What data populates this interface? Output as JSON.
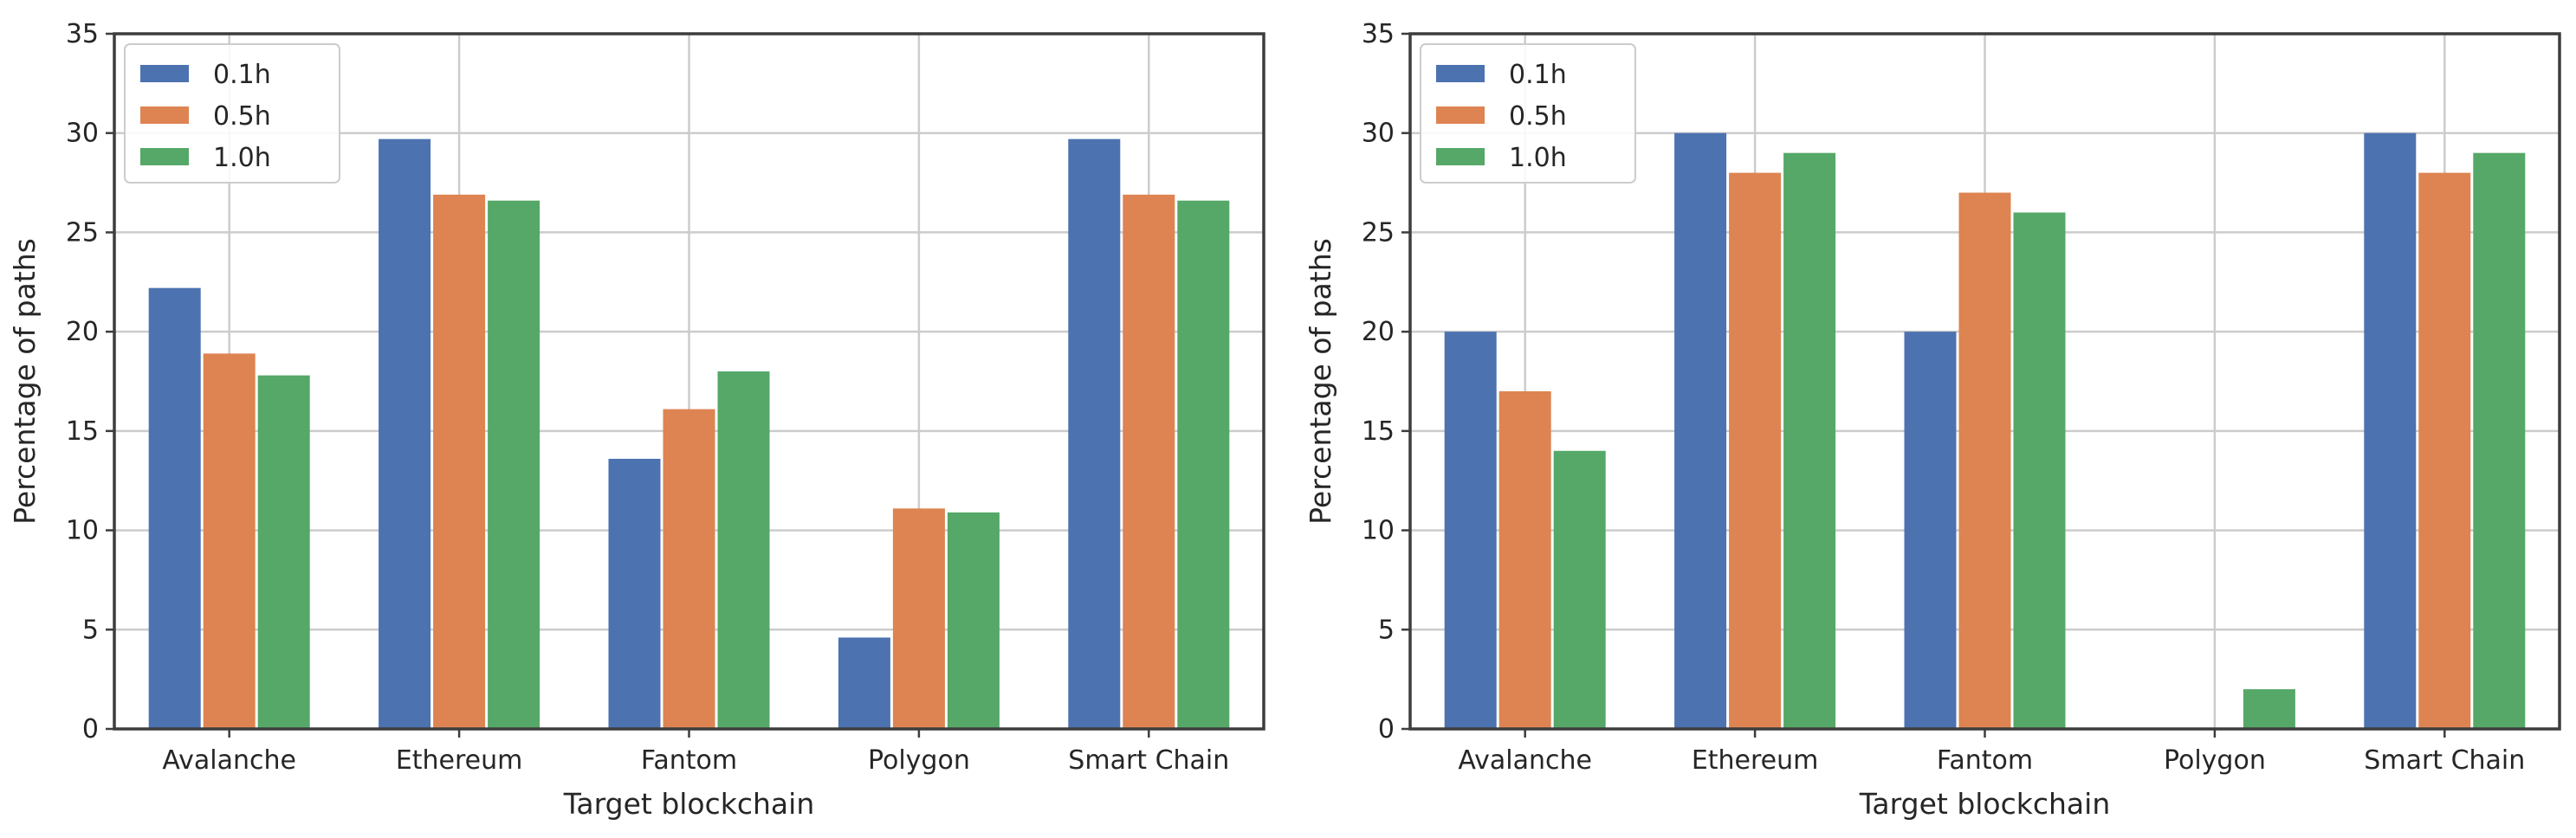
{
  "chart_data": [
    {
      "type": "bar",
      "categories": [
        "Avalanche",
        "Ethereum",
        "Fantom",
        "Polygon",
        "Smart Chain"
      ],
      "series": [
        {
          "name": "0.1h",
          "color": "#4c72b0",
          "values": [
            22.2,
            29.7,
            13.6,
            4.6,
            29.7
          ]
        },
        {
          "name": "0.5h",
          "color": "#dd8452",
          "values": [
            18.9,
            26.9,
            16.1,
            11.1,
            26.9
          ]
        },
        {
          "name": "1.0h",
          "color": "#55a868",
          "values": [
            17.8,
            26.6,
            18.0,
            10.9,
            26.6
          ]
        }
      ],
      "xlabel": "Target blockchain",
      "ylabel": "Percentage of paths",
      "ylim": [
        0,
        35
      ],
      "yticks": [
        "0",
        "5",
        "10",
        "15",
        "20",
        "25",
        "30",
        "35"
      ],
      "grid": true,
      "legend_position": "top-left"
    },
    {
      "type": "bar",
      "categories": [
        "Avalanche",
        "Ethereum",
        "Fantom",
        "Polygon",
        "Smart Chain"
      ],
      "series": [
        {
          "name": "0.1h",
          "color": "#4c72b0",
          "values": [
            20,
            30,
            20,
            0,
            30
          ]
        },
        {
          "name": "0.5h",
          "color": "#dd8452",
          "values": [
            17,
            28,
            27,
            0,
            28
          ]
        },
        {
          "name": "1.0h",
          "color": "#55a868",
          "values": [
            14,
            29,
            26,
            2,
            29
          ]
        }
      ],
      "xlabel": "Target blockchain",
      "ylabel": "Percentage of paths",
      "ylim": [
        0,
        35
      ],
      "yticks": [
        "0",
        "5",
        "10",
        "15",
        "20",
        "25",
        "30",
        "35"
      ],
      "grid": true,
      "legend_position": "top-left"
    }
  ]
}
